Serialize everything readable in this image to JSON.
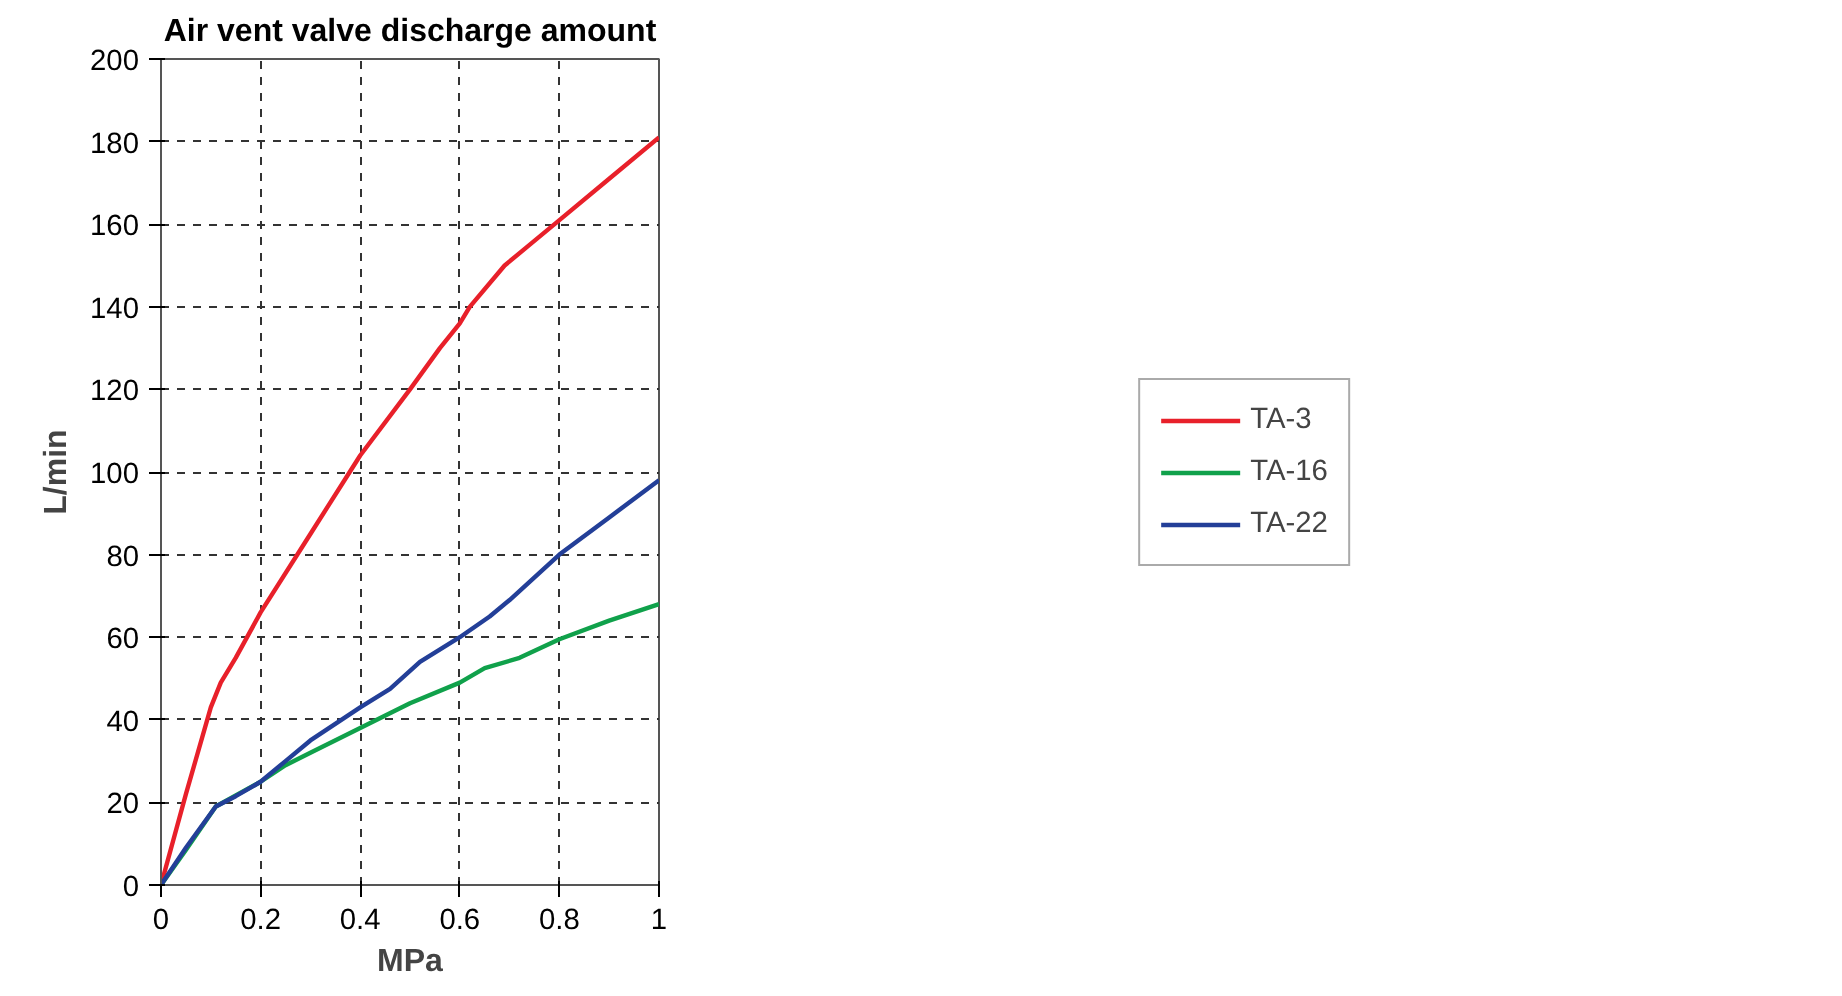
{
  "chart_data": {
    "type": "line",
    "title": "Air vent valve discharge amount",
    "xlabel": "MPa",
    "ylabel": "L/min",
    "xlim": [
      0,
      1
    ],
    "xticks": [
      0,
      0.2,
      0.4,
      0.6,
      0.8,
      1
    ],
    "ylim": [
      0,
      200
    ],
    "yticks": [
      0,
      20,
      40,
      60,
      80,
      100,
      120,
      140,
      160,
      180,
      200
    ],
    "grid": true,
    "legend": "right",
    "line_style": "solid",
    "series": [
      {
        "name": "TA-3",
        "color": "#e8202a",
        "x": [
          0,
          0.05,
          0.1,
          0.12,
          0.15,
          0.2,
          0.3,
          0.4,
          0.5,
          0.56,
          0.6,
          0.62,
          0.69,
          0.74,
          0.8,
          0.9,
          1.0
        ],
        "values": [
          0,
          22,
          43,
          49,
          55,
          66,
          85,
          104,
          120,
          130,
          136,
          140,
          150,
          155,
          161,
          171,
          181
        ]
      },
      {
        "name": "TA-16",
        "color": "#10a14b",
        "x": [
          0,
          0.05,
          0.11,
          0.2,
          0.25,
          0.3,
          0.4,
          0.5,
          0.6,
          0.65,
          0.72,
          0.8,
          0.9,
          1.0
        ],
        "values": [
          0,
          8.5,
          19,
          25,
          29,
          32,
          38,
          44,
          49,
          52.5,
          55,
          59.5,
          64,
          68
        ]
      },
      {
        "name": "TA-22",
        "color": "#233f98",
        "x": [
          0,
          0.05,
          0.11,
          0.15,
          0.2,
          0.25,
          0.3,
          0.4,
          0.46,
          0.52,
          0.6,
          0.66,
          0.7,
          0.8,
          0.9,
          1.0
        ],
        "values": [
          0,
          9,
          19,
          21.5,
          25,
          30,
          35,
          43,
          47.5,
          54,
          60,
          65,
          69,
          80,
          89,
          98
        ]
      }
    ]
  }
}
